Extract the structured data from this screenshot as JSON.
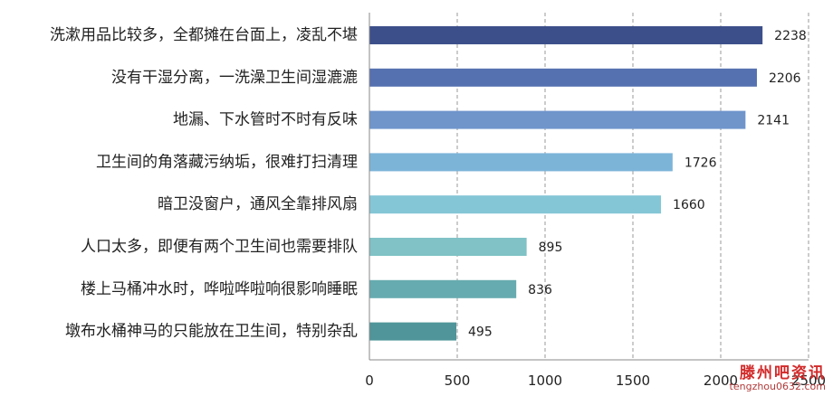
{
  "chart_data": {
    "type": "bar",
    "orientation": "horizontal",
    "categories": [
      "洗漱用品比较多，全都摊在台面上，凌乱不堪",
      "没有干湿分离，一洗澡卫生间湿漉漉",
      "地漏、下水管时不时有反味",
      "卫生间的角落藏污纳垢，很难打扫清理",
      "暗卫没窗户，通风全靠排风扇",
      "人口太多，即便有两个卫生间也需要排队",
      "楼上马桶冲水时，哗啦哗啦响很影响睡眠",
      "墩布水桶神马的只能放在卫生间，特别杂乱"
    ],
    "values": [
      2238,
      2206,
      2141,
      1726,
      1660,
      895,
      836,
      495
    ],
    "value_labels": [
      "2238",
      "2206",
      "2141",
      "1726",
      "1660",
      "895",
      "836",
      "495"
    ],
    "bar_colors": [
      "#3d4f8a",
      "#5571b0",
      "#6f95cb",
      "#7cb4d8",
      "#84c6d6",
      "#80c2c6",
      "#66abb0",
      "#4f9599"
    ],
    "xlim": [
      0,
      2500
    ],
    "x_ticks": [
      0,
      500,
      1000,
      1500,
      2000,
      2500
    ],
    "x_tick_labels": [
      "0",
      "500",
      "1000",
      "1500",
      "2000",
      "2500"
    ],
    "title": "",
    "xlabel": "",
    "ylabel": "",
    "grid": "vertical-dashed",
    "legend": "none"
  },
  "watermark": {
    "text": "滕州吧资讯",
    "url": "tengzhou0632.com"
  }
}
